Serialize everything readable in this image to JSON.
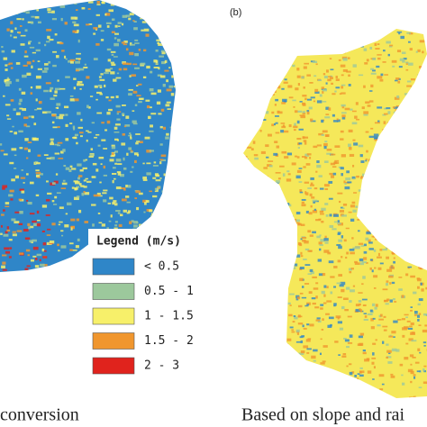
{
  "panel_b_label": "(b)",
  "legend": {
    "title": "Legend (m/s)",
    "items": [
      {
        "label": "< 0.5",
        "color": "#2f86c8"
      },
      {
        "label": "0.5 - 1",
        "color": "#9cc89c"
      },
      {
        "label": "1 - 1.5",
        "color": "#f7f06a"
      },
      {
        "label": "1.5 - 2",
        "color": "#f0962e"
      },
      {
        "label": "2 - 3",
        "color": "#e0231d"
      }
    ]
  },
  "captions": {
    "left": "conversion",
    "right": "Based on slope and rai"
  }
}
